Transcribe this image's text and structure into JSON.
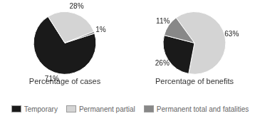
{
  "chart_data": [
    {
      "type": "pie",
      "title": "Percentage of cases",
      "categories": [
        "Temporary",
        "Permanent partial",
        "Permanent total and fatalities"
      ],
      "values": [
        71,
        28,
        1
      ],
      "value_labels": [
        "71%",
        "28%",
        "1%"
      ],
      "colors": [
        "#1a1a1a",
        "#d4d4d4",
        "#888888"
      ],
      "data_labels": true,
      "legend": "bottom"
    },
    {
      "type": "pie",
      "title": "Percentage of benefits",
      "categories": [
        "Permanent partial",
        "Temporary",
        "Permanent total and fatalities"
      ],
      "values": [
        63,
        26,
        11
      ],
      "value_labels": [
        "63%",
        "26%",
        "11%"
      ],
      "colors": [
        "#d4d4d4",
        "#1a1a1a",
        "#888888"
      ],
      "data_labels": true,
      "legend": "bottom"
    }
  ]
}
